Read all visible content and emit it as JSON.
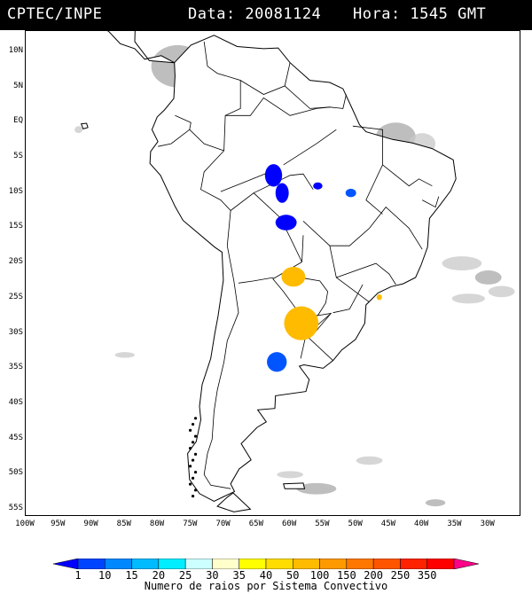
{
  "header": {
    "source": "CPTEC/INPE",
    "date_text": "Data: 20081124",
    "time_text": "Hora: 1545 GMT"
  },
  "map": {
    "lon_range": [
      -100,
      -25
    ],
    "lat_range": [
      -56,
      13
    ],
    "lat_ticks": [
      {
        "value": 10,
        "label": "10N"
      },
      {
        "value": 5,
        "label": "5N"
      },
      {
        "value": 0,
        "label": "EQ"
      },
      {
        "value": -5,
        "label": "5S"
      },
      {
        "value": -10,
        "label": "10S"
      },
      {
        "value": -15,
        "label": "15S"
      },
      {
        "value": -20,
        "label": "20S"
      },
      {
        "value": -25,
        "label": "25S"
      },
      {
        "value": -30,
        "label": "30S"
      },
      {
        "value": -35,
        "label": "35S"
      },
      {
        "value": -40,
        "label": "40S"
      },
      {
        "value": -45,
        "label": "45S"
      },
      {
        "value": -50,
        "label": "50S"
      },
      {
        "value": -55,
        "label": "55S"
      }
    ],
    "lon_ticks": [
      {
        "value": -100,
        "label": "100W"
      },
      {
        "value": -95,
        "label": "95W"
      },
      {
        "value": -90,
        "label": "90W"
      },
      {
        "value": -85,
        "label": "85W"
      },
      {
        "value": -80,
        "label": "80W"
      },
      {
        "value": -75,
        "label": "75W"
      },
      {
        "value": -70,
        "label": "70W"
      },
      {
        "value": -65,
        "label": "65W"
      },
      {
        "value": -60,
        "label": "60W"
      },
      {
        "value": -55,
        "label": "55W"
      },
      {
        "value": -50,
        "label": "50W"
      },
      {
        "value": -45,
        "label": "45W"
      },
      {
        "value": -40,
        "label": "40W"
      },
      {
        "value": -35,
        "label": "35W"
      },
      {
        "value": -30,
        "label": "30W"
      }
    ],
    "colors": {
      "coast": "#000000",
      "cloud": "#c8c8c8",
      "cloud_dense": "#a8a8a8"
    },
    "convective_systems": [
      {
        "lon": -62.5,
        "lat": -7.5,
        "color": "#0000ff"
      },
      {
        "lon": -61.2,
        "lat": -10.0,
        "color": "#0000ff"
      },
      {
        "lon": -60.6,
        "lat": -14.2,
        "color": "#0000ff"
      },
      {
        "lon": -50.8,
        "lat": -10.0,
        "color": "#0055ff"
      },
      {
        "lon": -55.8,
        "lat": -9.0,
        "color": "#0000ff"
      },
      {
        "lon": -59.5,
        "lat": -21.9,
        "color": "#ffbb00"
      },
      {
        "lon": -58.3,
        "lat": -28.5,
        "color": "#ffbb00"
      },
      {
        "lon": -62.0,
        "lat": -34.0,
        "color": "#0055ff"
      },
      {
        "lon": -46.5,
        "lat": -24.8,
        "color": "#ffbb00"
      }
    ]
  },
  "colorbar": {
    "colors": [
      "#0000ff",
      "#0044ff",
      "#0088ff",
      "#00bbff",
      "#00eeff",
      "#ccffff",
      "#ffffcc",
      "#ffff00",
      "#ffdd00",
      "#ffbb00",
      "#ff9900",
      "#ff7700",
      "#ff5500",
      "#ff2200",
      "#ff0000",
      "#ff0088"
    ],
    "labels": [
      "1",
      "10",
      "15",
      "20",
      "25",
      "30",
      "35",
      "40",
      "50",
      "100",
      "150",
      "200",
      "250",
      "350"
    ],
    "title": "Numero de raios por Sistema Convectivo"
  }
}
